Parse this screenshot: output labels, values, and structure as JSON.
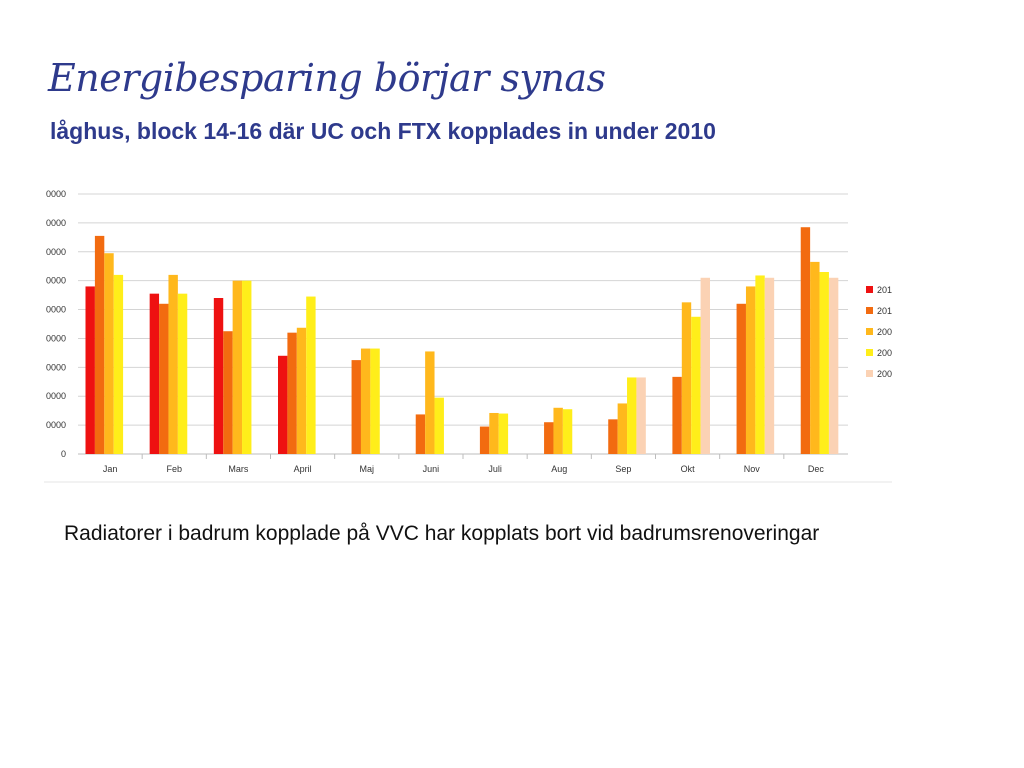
{
  "title": "Energibesparing börjar synas",
  "subtitle": "låghus, block 14-16 där UC och FTX kopplades in under 2010",
  "note": "Radiatorer i badrum kopplade på VVC har kopplats bort vid badrumsrenoveringar",
  "chart_data": {
    "type": "bar",
    "title": "",
    "xlabel": "",
    "ylabel": "",
    "categories": [
      "Jan",
      "Feb",
      "Mars",
      "April",
      "Maj",
      "Juni",
      "Juli",
      "Aug",
      "Sep",
      "Okt",
      "Nov",
      "Dec"
    ],
    "ylim": [
      0,
      90000
    ],
    "ytick_step": 10000,
    "yticks": [
      "0",
      "0000",
      "0000",
      "0000",
      "0000",
      "0000",
      "0000",
      "0000",
      "0000",
      "0000"
    ],
    "grid": true,
    "legend_position": "right",
    "series": [
      {
        "name": "201",
        "color": "#ee1111",
        "values": [
          58000,
          55500,
          54000,
          34000,
          null,
          null,
          null,
          null,
          null,
          null,
          null,
          null
        ]
      },
      {
        "name": "201",
        "color": "#f26b10",
        "values": [
          75500,
          52000,
          42500,
          42000,
          32500,
          13700,
          9500,
          11000,
          12000,
          26700,
          52000,
          78500
        ]
      },
      {
        "name": "200",
        "color": "#ffb81c",
        "values": [
          69500,
          62000,
          60000,
          43700,
          36500,
          35500,
          14200,
          16000,
          17500,
          52500,
          58000,
          66500
        ]
      },
      {
        "name": "200",
        "color": "#ffee1a",
        "values": [
          62000,
          55500,
          60000,
          54500,
          36500,
          19500,
          14000,
          15500,
          26500,
          47500,
          61800,
          63000
        ]
      },
      {
        "name": "200",
        "color": "#fbd2b4",
        "values": [
          null,
          null,
          null,
          null,
          null,
          null,
          null,
          null,
          26500,
          61000,
          61000,
          61000
        ]
      }
    ]
  }
}
